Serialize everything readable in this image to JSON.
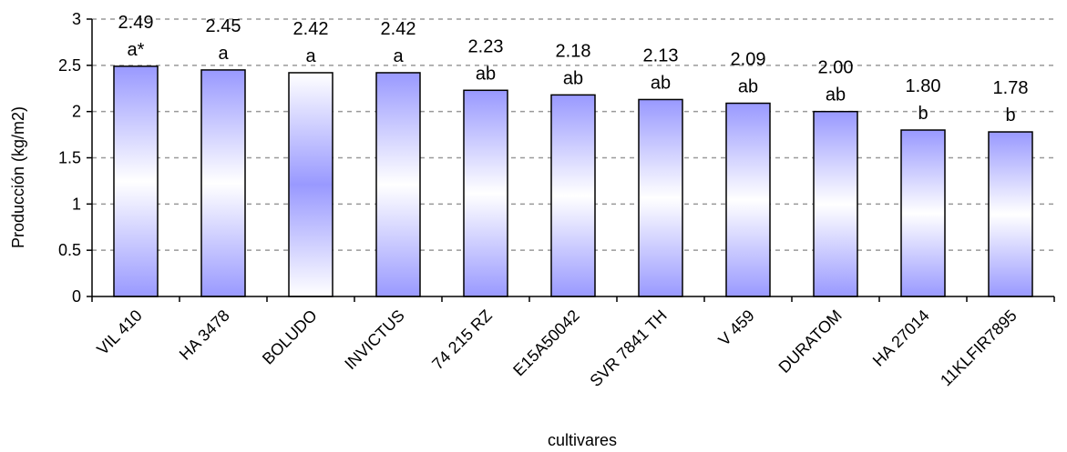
{
  "chart_data": {
    "type": "bar",
    "title": "",
    "xlabel": "cultivares",
    "ylabel": "Producción (kg/m2)",
    "ylim": [
      0,
      3
    ],
    "yticks": [
      "0",
      "0.5",
      "1",
      "1.5",
      "2",
      "2.5",
      "3"
    ],
    "grid": "horizontal dashed",
    "legend": "none",
    "categories": [
      "VIL 410",
      "HA 3478",
      "BOLUDO",
      "INVICTUS",
      "74 215 RZ",
      "E15A50042",
      "SVR 7841 TH",
      "V 459",
      "DURATOM",
      "HA 27014",
      "11KLFIR7895"
    ],
    "values": [
      2.49,
      2.45,
      2.42,
      2.42,
      2.23,
      2.18,
      2.13,
      2.09,
      2.0,
      1.8,
      1.78
    ],
    "value_labels": [
      "2.49",
      "2.45",
      "2.42",
      "2.42",
      "2.23",
      "2.18",
      "2.13",
      "2.09",
      "2.00",
      "1.80",
      "1.78"
    ],
    "group_labels": [
      "a*",
      "a",
      "a",
      "a",
      "ab",
      "ab",
      "ab",
      "ab",
      "ab",
      "b",
      "b"
    ],
    "colors": {
      "bar_edge": "#9999ff",
      "bar_light": "#ffffff",
      "bar_border": "#000000",
      "grid": "#999999"
    }
  }
}
